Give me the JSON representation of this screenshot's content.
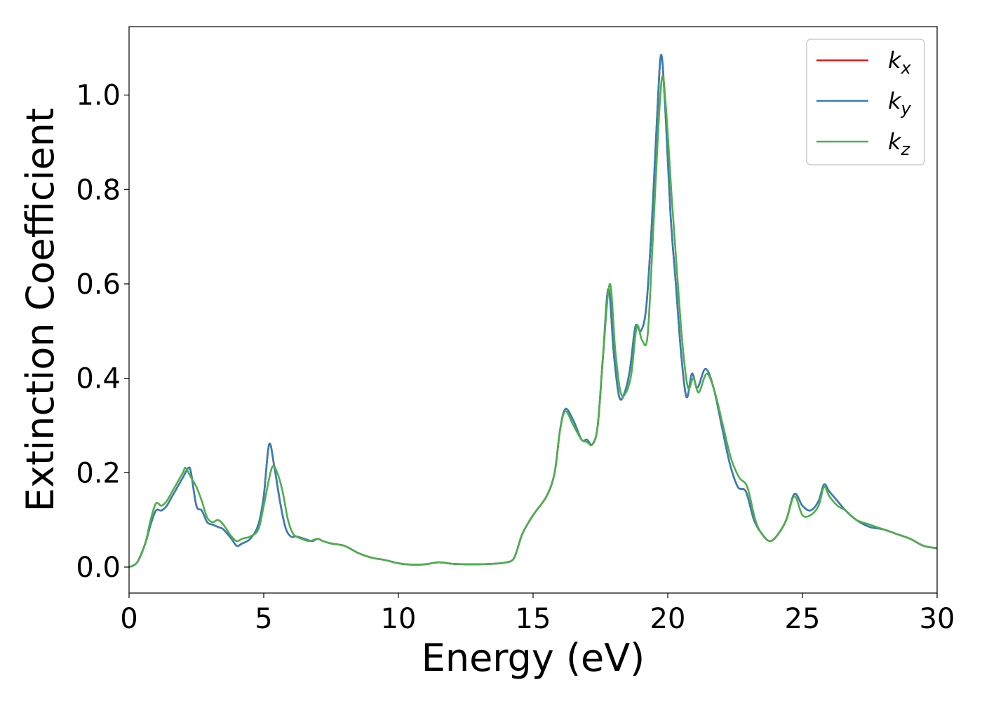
{
  "chart_data": {
    "type": "line",
    "xlabel": "Energy (eV)",
    "ylabel": "Extinction Coefficient",
    "xlim": [
      0,
      30
    ],
    "ylim": [
      -0.055,
      1.145
    ],
    "xticks": [
      0,
      5,
      10,
      15,
      20,
      25,
      30
    ],
    "yticks": [
      0.0,
      0.2,
      0.4,
      0.6,
      0.8,
      1.0
    ],
    "grid": false,
    "legend_position": "top-right",
    "series": [
      {
        "name": "k",
        "subscript": "x",
        "color": "#e41a1c",
        "x": [
          0,
          0.3,
          0.6,
          0.8,
          1.0,
          1.2,
          1.4,
          1.6,
          1.8,
          2.0,
          2.2,
          2.3,
          2.5,
          2.7,
          2.9,
          3.1,
          3.3,
          3.5,
          3.8,
          4.0,
          4.2,
          4.5,
          4.8,
          5.0,
          5.2,
          5.4,
          5.6,
          5.8,
          6.0,
          6.2,
          6.5,
          6.8,
          7.0,
          7.2,
          7.5,
          8.0,
          8.5,
          9.0,
          9.5,
          10.0,
          10.5,
          11.0,
          11.5,
          12.0,
          12.5,
          13.0,
          13.5,
          14.0,
          14.3,
          14.6,
          15.0,
          15.5,
          15.8,
          16.0,
          16.2,
          16.5,
          16.8,
          17.0,
          17.2,
          17.4,
          17.6,
          17.8,
          18.0,
          18.2,
          18.4,
          18.6,
          18.8,
          19.0,
          19.2,
          19.4,
          19.6,
          19.75,
          19.9,
          20.1,
          20.3,
          20.5,
          20.7,
          20.9,
          21.1,
          21.4,
          21.7,
          22.0,
          22.3,
          22.6,
          22.9,
          23.2,
          23.5,
          23.8,
          24.1,
          24.4,
          24.7,
          25.0,
          25.3,
          25.6,
          25.8,
          26.0,
          26.3,
          26.6,
          27.0,
          27.5,
          28.0,
          28.5,
          29.0,
          29.5,
          30.0
        ],
        "y": [
          0.0,
          0.01,
          0.05,
          0.09,
          0.12,
          0.12,
          0.13,
          0.15,
          0.17,
          0.19,
          0.21,
          0.2,
          0.13,
          0.12,
          0.095,
          0.09,
          0.085,
          0.08,
          0.06,
          0.045,
          0.05,
          0.06,
          0.09,
          0.15,
          0.26,
          0.21,
          0.14,
          0.085,
          0.065,
          0.065,
          0.06,
          0.055,
          0.06,
          0.055,
          0.05,
          0.045,
          0.03,
          0.02,
          0.015,
          0.008,
          0.005,
          0.006,
          0.01,
          0.007,
          0.006,
          0.006,
          0.007,
          0.01,
          0.02,
          0.07,
          0.11,
          0.15,
          0.2,
          0.29,
          0.335,
          0.31,
          0.27,
          0.27,
          0.26,
          0.3,
          0.45,
          0.59,
          0.45,
          0.36,
          0.37,
          0.42,
          0.51,
          0.5,
          0.55,
          0.72,
          0.95,
          1.085,
          0.98,
          0.75,
          0.6,
          0.45,
          0.36,
          0.41,
          0.38,
          0.42,
          0.38,
          0.3,
          0.22,
          0.17,
          0.16,
          0.1,
          0.07,
          0.055,
          0.07,
          0.1,
          0.155,
          0.13,
          0.12,
          0.14,
          0.175,
          0.16,
          0.14,
          0.12,
          0.1,
          0.085,
          0.08,
          0.07,
          0.06,
          0.045,
          0.04
        ]
      },
      {
        "name": "k",
        "subscript": "y",
        "color": "#377eb8",
        "x": [
          0,
          0.3,
          0.6,
          0.8,
          1.0,
          1.2,
          1.4,
          1.6,
          1.8,
          2.0,
          2.2,
          2.3,
          2.5,
          2.7,
          2.9,
          3.1,
          3.3,
          3.5,
          3.8,
          4.0,
          4.2,
          4.5,
          4.8,
          5.0,
          5.2,
          5.4,
          5.6,
          5.8,
          6.0,
          6.2,
          6.5,
          6.8,
          7.0,
          7.2,
          7.5,
          8.0,
          8.5,
          9.0,
          9.5,
          10.0,
          10.5,
          11.0,
          11.5,
          12.0,
          12.5,
          13.0,
          13.5,
          14.0,
          14.3,
          14.6,
          15.0,
          15.5,
          15.8,
          16.0,
          16.2,
          16.5,
          16.8,
          17.0,
          17.2,
          17.4,
          17.6,
          17.8,
          18.0,
          18.2,
          18.4,
          18.6,
          18.8,
          19.0,
          19.2,
          19.4,
          19.6,
          19.75,
          19.9,
          20.1,
          20.3,
          20.5,
          20.7,
          20.9,
          21.1,
          21.4,
          21.7,
          22.0,
          22.3,
          22.6,
          22.9,
          23.2,
          23.5,
          23.8,
          24.1,
          24.4,
          24.7,
          25.0,
          25.3,
          25.6,
          25.8,
          26.0,
          26.3,
          26.6,
          27.0,
          27.5,
          28.0,
          28.5,
          29.0,
          29.5,
          30.0
        ],
        "y": [
          0.0,
          0.01,
          0.05,
          0.09,
          0.12,
          0.12,
          0.13,
          0.15,
          0.17,
          0.19,
          0.21,
          0.2,
          0.13,
          0.12,
          0.095,
          0.09,
          0.085,
          0.08,
          0.06,
          0.045,
          0.05,
          0.06,
          0.09,
          0.15,
          0.26,
          0.21,
          0.14,
          0.085,
          0.065,
          0.065,
          0.06,
          0.055,
          0.06,
          0.055,
          0.05,
          0.045,
          0.03,
          0.02,
          0.015,
          0.008,
          0.005,
          0.006,
          0.01,
          0.007,
          0.006,
          0.006,
          0.007,
          0.01,
          0.02,
          0.07,
          0.11,
          0.15,
          0.2,
          0.29,
          0.335,
          0.31,
          0.27,
          0.27,
          0.26,
          0.3,
          0.45,
          0.59,
          0.45,
          0.36,
          0.37,
          0.42,
          0.51,
          0.5,
          0.55,
          0.72,
          0.95,
          1.085,
          0.98,
          0.75,
          0.6,
          0.45,
          0.36,
          0.41,
          0.38,
          0.42,
          0.38,
          0.3,
          0.22,
          0.17,
          0.16,
          0.1,
          0.07,
          0.055,
          0.07,
          0.1,
          0.155,
          0.13,
          0.12,
          0.14,
          0.175,
          0.16,
          0.14,
          0.12,
          0.1,
          0.085,
          0.08,
          0.07,
          0.06,
          0.045,
          0.04
        ]
      },
      {
        "name": "k",
        "subscript": "z",
        "color": "#4daf4a",
        "x": [
          0,
          0.3,
          0.6,
          0.8,
          1.0,
          1.2,
          1.4,
          1.6,
          1.8,
          2.0,
          2.1,
          2.3,
          2.5,
          2.7,
          2.9,
          3.1,
          3.3,
          3.5,
          3.8,
          4.0,
          4.2,
          4.5,
          4.8,
          5.0,
          5.3,
          5.5,
          5.7,
          5.9,
          6.1,
          6.4,
          6.7,
          7.0,
          7.2,
          7.5,
          8.0,
          8.5,
          9.0,
          9.5,
          10.0,
          10.5,
          11.0,
          11.5,
          12.0,
          12.5,
          13.0,
          13.5,
          14.0,
          14.3,
          14.6,
          15.0,
          15.5,
          15.8,
          16.0,
          16.2,
          16.5,
          16.8,
          17.0,
          17.2,
          17.4,
          17.6,
          17.85,
          18.05,
          18.25,
          18.45,
          18.65,
          18.85,
          19.05,
          19.25,
          19.45,
          19.65,
          19.8,
          19.95,
          20.15,
          20.35,
          20.55,
          20.75,
          20.95,
          21.15,
          21.45,
          21.75,
          22.05,
          22.35,
          22.65,
          22.95,
          23.25,
          23.5,
          23.8,
          24.1,
          24.4,
          24.7,
          25.0,
          25.3,
          25.6,
          25.8,
          26.0,
          26.3,
          26.6,
          27.0,
          27.5,
          28.0,
          28.5,
          29.0,
          29.5,
          30.0
        ],
        "y": [
          0.0,
          0.01,
          0.05,
          0.1,
          0.135,
          0.13,
          0.14,
          0.16,
          0.18,
          0.2,
          0.21,
          0.19,
          0.17,
          0.14,
          0.105,
          0.095,
          0.1,
          0.09,
          0.065,
          0.055,
          0.06,
          0.065,
          0.08,
          0.13,
          0.21,
          0.2,
          0.16,
          0.1,
          0.07,
          0.06,
          0.055,
          0.06,
          0.055,
          0.05,
          0.045,
          0.03,
          0.02,
          0.015,
          0.008,
          0.005,
          0.006,
          0.01,
          0.007,
          0.006,
          0.006,
          0.007,
          0.01,
          0.02,
          0.07,
          0.11,
          0.15,
          0.2,
          0.29,
          0.33,
          0.3,
          0.27,
          0.265,
          0.26,
          0.3,
          0.45,
          0.6,
          0.46,
          0.37,
          0.37,
          0.41,
          0.51,
          0.48,
          0.49,
          0.7,
          0.93,
          1.04,
          0.96,
          0.78,
          0.62,
          0.47,
          0.38,
          0.4,
          0.37,
          0.41,
          0.37,
          0.3,
          0.23,
          0.19,
          0.17,
          0.1,
          0.07,
          0.055,
          0.07,
          0.1,
          0.15,
          0.11,
          0.11,
          0.13,
          0.17,
          0.15,
          0.13,
          0.12,
          0.1,
          0.09,
          0.08,
          0.07,
          0.06,
          0.045,
          0.04
        ]
      }
    ]
  }
}
